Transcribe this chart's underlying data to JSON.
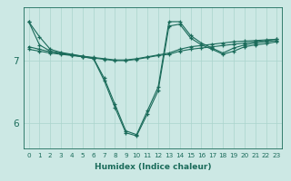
{
  "xlabel": "Humidex (Indice chaleur)",
  "bg_color": "#cce8e4",
  "line_color": "#1a6b5a",
  "grid_color": "#aad4cc",
  "xlim": [
    -0.5,
    23.5
  ],
  "ylim": [
    5.6,
    7.85
  ],
  "xticks": [
    0,
    1,
    2,
    3,
    4,
    5,
    6,
    7,
    8,
    9,
    10,
    11,
    12,
    13,
    14,
    15,
    16,
    17,
    18,
    19,
    20,
    21,
    22,
    23
  ],
  "yticks": [
    6,
    7
  ],
  "series": [
    [
      7.62,
      7.38,
      7.18,
      7.13,
      7.1,
      7.07,
      7.04,
      6.72,
      6.3,
      5.88,
      5.82,
      6.2,
      6.58,
      7.62,
      7.62,
      7.4,
      7.28,
      7.2,
      7.12,
      7.2,
      7.25,
      7.28,
      7.3,
      7.32
    ],
    [
      7.62,
      7.25,
      7.15,
      7.12,
      7.09,
      7.06,
      7.03,
      6.68,
      6.25,
      5.85,
      5.8,
      6.15,
      6.52,
      7.55,
      7.58,
      7.36,
      7.25,
      7.18,
      7.1,
      7.15,
      7.22,
      7.25,
      7.27,
      7.3
    ],
    [
      7.22,
      7.18,
      7.14,
      7.11,
      7.09,
      7.07,
      7.05,
      7.03,
      7.01,
      7.01,
      7.03,
      7.06,
      7.09,
      7.12,
      7.18,
      7.22,
      7.24,
      7.26,
      7.28,
      7.3,
      7.31,
      7.32,
      7.33,
      7.34
    ],
    [
      7.18,
      7.15,
      7.12,
      7.1,
      7.08,
      7.06,
      7.04,
      7.02,
      7.0,
      7.0,
      7.02,
      7.05,
      7.08,
      7.1,
      7.15,
      7.18,
      7.2,
      7.22,
      7.24,
      7.26,
      7.28,
      7.3,
      7.32,
      7.34
    ]
  ],
  "xlabel_fontsize": 6.5,
  "xtick_fontsize": 5.2,
  "ytick_fontsize": 7.5
}
